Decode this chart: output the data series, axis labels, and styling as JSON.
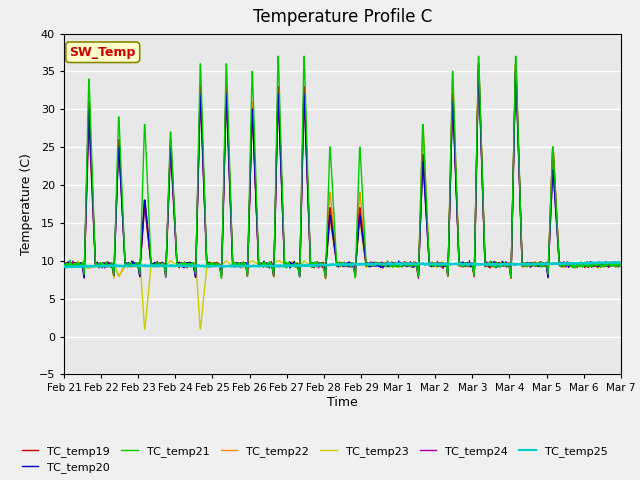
{
  "title": "Temperature Profile C",
  "xlabel": "Time",
  "ylabel": "Temperature (C)",
  "ylim": [
    -5,
    40
  ],
  "yticks": [
    -5,
    0,
    5,
    10,
    15,
    20,
    25,
    30,
    35,
    40
  ],
  "xtick_labels": [
    "Feb 21",
    "Feb 22",
    "Feb 23",
    "Feb 24",
    "Feb 25",
    "Feb 26",
    "Feb 27",
    "Feb 28",
    "Feb 29",
    "Mar 1",
    "Mar 2",
    "Mar 3",
    "Mar 4",
    "Mar 5",
    "Mar 6",
    "Mar 7"
  ],
  "legend_entries": [
    "TC_temp19",
    "TC_temp20",
    "TC_temp21",
    "TC_temp22",
    "TC_temp23",
    "TC_temp24",
    "TC_temp25"
  ],
  "colors": {
    "TC_temp19": "#cc0000",
    "TC_temp20": "#0000cc",
    "TC_temp21": "#00cc00",
    "TC_temp22": "#ff8800",
    "TC_temp23": "#cccc00",
    "TC_temp24": "#aa00aa",
    "TC_temp25": "#00cccc"
  },
  "sw_temp_label": "SW_Temp",
  "sw_temp_color": "#cc0000",
  "sw_temp_bg": "#ffffcc",
  "sw_temp_border": "#888800",
  "background_color": "#e8e8e8",
  "grid_color": "#ffffff",
  "line_width": 1.0
}
